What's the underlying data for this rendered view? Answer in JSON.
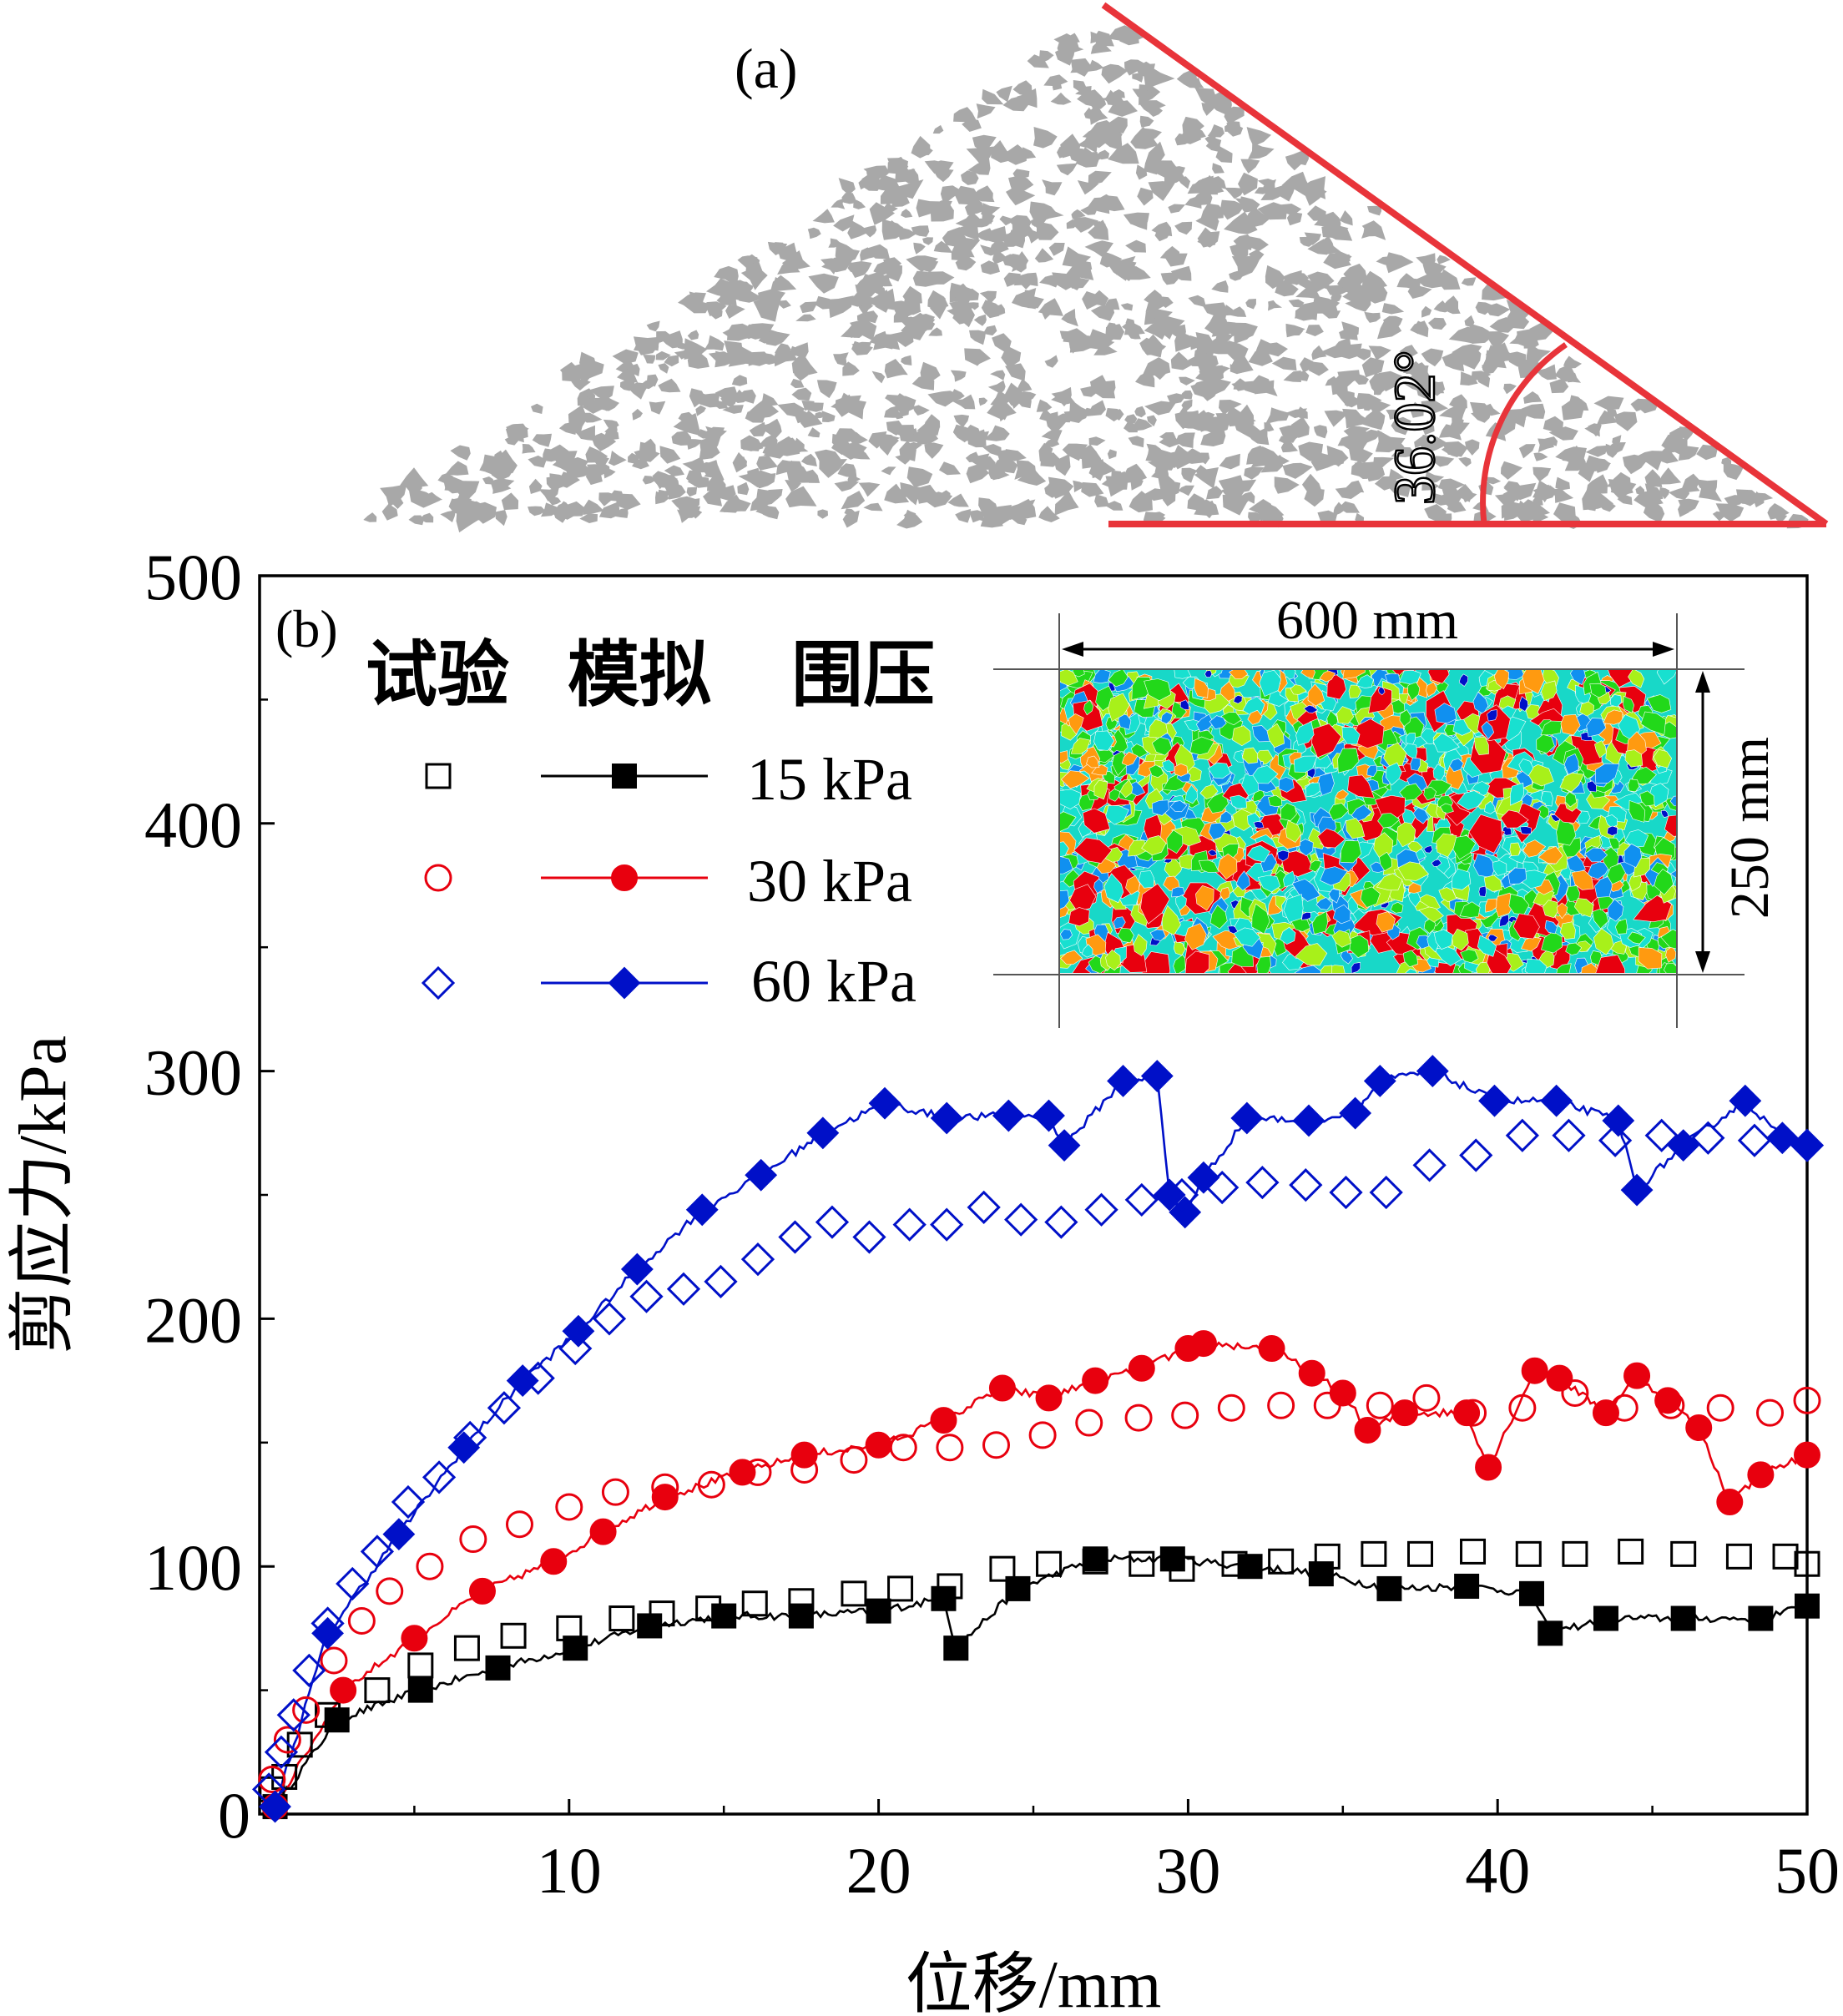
{
  "panel_a": {
    "label": "(a)",
    "angle_text": "36.02°",
    "particle_color": "#a8a8a8",
    "line_color": "#e8343a"
  },
  "chart_data": {
    "type": "line",
    "panel_label": "(b)",
    "xlabel": "位移/mm",
    "ylabel": "剪应力/kPa",
    "xlim": [
      0,
      50
    ],
    "ylim": [
      0,
      500
    ],
    "xticks": [
      0,
      10,
      20,
      30,
      40,
      50
    ],
    "yticks": [
      0,
      100,
      200,
      300,
      400,
      500
    ],
    "legend": {
      "position": "top-left",
      "headers": [
        "试验",
        "模拟",
        "围压"
      ],
      "entries": [
        "15 kPa",
        "30 kPa",
        "60 kPa"
      ]
    },
    "inset": {
      "width_label": "600 mm",
      "height_label": "250 mm",
      "colors": [
        "#e8000e",
        "#ff9a10",
        "#22d81a",
        "#a8f01a",
        "#18e0d0",
        "#1090f0",
        "#0010c8"
      ]
    },
    "series": [
      {
        "name": "15 kPa 模拟",
        "color": "#000000",
        "marker": "square-filled",
        "x": [
          0.5,
          2.5,
          5.2,
          7.7,
          10.2,
          12.6,
          15.0,
          17.5,
          20.0,
          22.1,
          22.5,
          24.5,
          27.0,
          29.5,
          32.0,
          34.3,
          36.5,
          39.0,
          41.1,
          41.7,
          43.5,
          46.0,
          48.5,
          50.0
        ],
        "y": [
          3,
          38,
          50,
          59,
          67,
          76,
          80,
          80,
          82,
          87,
          67,
          91,
          103,
          103,
          100,
          97,
          91,
          92,
          89,
          73,
          79,
          79,
          79,
          84
        ]
      },
      {
        "name": "15 kPa 试验",
        "color": "#000000",
        "marker": "square-open",
        "x": [
          0.4,
          0.8,
          1.3,
          2.2,
          3.8,
          5.2,
          6.7,
          8.2,
          10.0,
          11.7,
          13.0,
          14.5,
          16.0,
          17.5,
          19.2,
          20.7,
          22.3,
          24.0,
          25.5,
          27.0,
          28.5,
          29.8,
          31.5,
          33.0,
          34.5,
          36.0,
          37.5,
          39.2,
          41.0,
          42.5,
          44.3,
          46.0,
          47.8,
          49.3,
          50.0
        ],
        "y": [
          10,
          15,
          28,
          40,
          50,
          60,
          67,
          72,
          75,
          79,
          81,
          83,
          85,
          86,
          89,
          91,
          92,
          99,
          101,
          102,
          101,
          99,
          101,
          102,
          104,
          105,
          105,
          106,
          105,
          105,
          106,
          105,
          104,
          104,
          101
        ]
      },
      {
        "name": "30 kPa 模拟",
        "color": "#e8000e",
        "marker": "circle-filled",
        "x": [
          0.5,
          2.7,
          5.0,
          7.2,
          9.5,
          11.1,
          13.1,
          15.6,
          17.6,
          20.0,
          22.1,
          24.0,
          25.5,
          27.0,
          28.5,
          30.0,
          30.5,
          32.7,
          34.0,
          35.0,
          35.8,
          37.0,
          39.0,
          39.7,
          41.2,
          42.0,
          43.5,
          44.5,
          45.5,
          46.5,
          47.5,
          48.5,
          50.0
        ],
        "y": [
          3,
          50,
          71,
          90,
          102,
          114,
          128,
          138,
          145,
          149,
          159,
          172,
          168,
          175,
          180,
          188,
          190,
          188,
          178,
          170,
          155,
          162,
          162,
          140,
          179,
          176,
          162,
          177,
          167,
          156,
          126,
          137,
          145
        ]
      },
      {
        "name": "30 kPa 试验",
        "color": "#e8000e",
        "marker": "circle-open",
        "x": [
          0.4,
          0.9,
          1.5,
          2.4,
          3.3,
          4.2,
          5.5,
          6.9,
          8.4,
          10.0,
          11.5,
          13.1,
          14.6,
          16.1,
          17.6,
          19.2,
          20.8,
          22.3,
          23.8,
          25.3,
          26.8,
          28.4,
          29.9,
          31.4,
          33.0,
          34.5,
          36.2,
          37.7,
          39.2,
          40.8,
          42.5,
          44.1,
          45.6,
          47.2,
          48.8,
          50.0
        ],
        "y": [
          14,
          30,
          42,
          62,
          78,
          90,
          100,
          111,
          117,
          124,
          130,
          132,
          133,
          138,
          139,
          143,
          148,
          148,
          149,
          153,
          158,
          160,
          161,
          164,
          165,
          165,
          165,
          168,
          162,
          164,
          170,
          164,
          165,
          164,
          162,
          167
        ]
      },
      {
        "name": "60 kPa 模拟",
        "color": "#0010c8",
        "marker": "diamond-filled",
        "x": [
          0.5,
          2.2,
          4.5,
          6.6,
          8.5,
          10.3,
          12.2,
          14.3,
          16.2,
          18.2,
          20.2,
          22.2,
          24.2,
          25.5,
          26.0,
          27.9,
          29.0,
          29.4,
          29.9,
          30.5,
          31.9,
          33.9,
          35.4,
          36.2,
          37.9,
          39.9,
          41.9,
          43.9,
          44.5,
          46.0,
          48.0,
          49.2,
          50.0
        ],
        "y": [
          3,
          73,
          113,
          148,
          175,
          195,
          220,
          244,
          258,
          275,
          287,
          281,
          282,
          282,
          270,
          296,
          298,
          250,
          243,
          257,
          281,
          280,
          283,
          296,
          300,
          288,
          288,
          280,
          252,
          270,
          288,
          273,
          270
        ]
      },
      {
        "name": "60 kPa 试验",
        "color": "#0010c8",
        "marker": "diamond-open",
        "x": [
          0.3,
          0.7,
          1.1,
          1.6,
          2.2,
          3.0,
          3.8,
          4.8,
          5.8,
          6.8,
          7.9,
          9.0,
          10.2,
          11.3,
          12.5,
          13.7,
          14.9,
          16.1,
          17.3,
          18.5,
          19.7,
          21.0,
          22.2,
          23.4,
          24.6,
          25.9,
          27.2,
          28.5,
          29.8,
          31.1,
          32.4,
          33.8,
          35.1,
          36.4,
          37.8,
          39.3,
          40.8,
          42.3,
          43.8,
          45.3,
          46.8,
          48.3,
          50.0
        ],
        "y": [
          10,
          25,
          40,
          58,
          77,
          93,
          106,
          126,
          136,
          152,
          164,
          176,
          188,
          200,
          209,
          212,
          215,
          224,
          233,
          239,
          233,
          238,
          238,
          245,
          240,
          239,
          244,
          248,
          250,
          253,
          255,
          254,
          251,
          251,
          262,
          266,
          274,
          274,
          272,
          274,
          273,
          272,
          270
        ]
      }
    ]
  }
}
